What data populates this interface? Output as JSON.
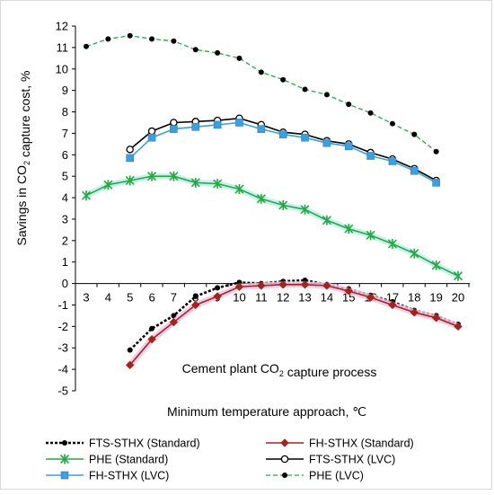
{
  "chart_data": {
    "type": "line",
    "xlabel": "Minimum temperature  approach, ℃",
    "ylabel": "Savings in CO₂ capture cost, %",
    "xlim": [
      3,
      20
    ],
    "ylim": [
      -5,
      12
    ],
    "y_ticks": [
      -5,
      -4,
      -3,
      -2,
      -1,
      0,
      1,
      2,
      3,
      4,
      5,
      6,
      7,
      8,
      9,
      10,
      11,
      12
    ],
    "x_ticks": [
      3,
      4,
      5,
      6,
      7,
      8,
      9,
      10,
      11,
      12,
      13,
      14,
      15,
      16,
      17,
      18,
      19,
      20
    ],
    "grid": false,
    "legend_position": "bottom",
    "annotation": "Cement plant CO₂ capture process",
    "series": [
      {
        "name": "FTS-STHX (Standard)",
        "color": "#000000",
        "x": [
          5,
          6,
          7,
          8,
          9,
          10,
          11,
          12,
          13,
          14,
          15,
          16,
          17,
          18,
          19,
          20
        ],
        "y": [
          -3.1,
          -2.1,
          -1.5,
          -0.6,
          -0.2,
          0.05,
          0.0,
          0.1,
          0.15,
          -0.05,
          -0.25,
          -0.55,
          -0.85,
          -1.25,
          -1.5,
          -1.9
        ]
      },
      {
        "name": "FH-STHX (Standard)",
        "color": "#a3241f",
        "x": [
          5,
          6,
          7,
          8,
          9,
          10,
          11,
          12,
          13,
          14,
          15,
          16,
          17,
          18,
          19,
          20
        ],
        "y": [
          -3.8,
          -2.6,
          -1.8,
          -1.0,
          -0.6,
          -0.15,
          -0.1,
          -0.05,
          -0.05,
          -0.1,
          -0.35,
          -0.65,
          -1.0,
          -1.35,
          -1.6,
          -2.0
        ]
      },
      {
        "name": "PHE (Standard)",
        "color": "#27a844",
        "x": [
          3,
          4,
          5,
          6,
          7,
          8,
          9,
          10,
          11,
          12,
          13,
          14,
          15,
          16,
          17,
          18,
          19,
          20
        ],
        "y": [
          4.1,
          4.6,
          4.8,
          5.0,
          5.0,
          4.7,
          4.65,
          4.4,
          3.95,
          3.65,
          3.45,
          2.95,
          2.55,
          2.25,
          1.85,
          1.4,
          0.85,
          0.35
        ]
      },
      {
        "name": "FTS-STHX (LVC)",
        "color": "#000000",
        "x": [
          5,
          6,
          7,
          8,
          9,
          10,
          11,
          12,
          13,
          14,
          15,
          16,
          17,
          18,
          19
        ],
        "y": [
          6.25,
          7.1,
          7.5,
          7.55,
          7.6,
          7.7,
          7.4,
          7.05,
          6.95,
          6.65,
          6.5,
          6.1,
          5.8,
          5.35,
          4.8
        ]
      },
      {
        "name": "FH-STHX (LVC)",
        "color": "#3d9ee0",
        "x": [
          5,
          6,
          7,
          8,
          9,
          10,
          11,
          12,
          13,
          14,
          15,
          16,
          17,
          18,
          19
        ],
        "y": [
          5.85,
          6.8,
          7.2,
          7.3,
          7.4,
          7.5,
          7.2,
          6.95,
          6.8,
          6.55,
          6.4,
          5.95,
          5.7,
          5.25,
          4.7
        ]
      },
      {
        "name": "PHE (LVC)",
        "color": "#27a844",
        "x": [
          3,
          4,
          5,
          6,
          7,
          8,
          9,
          10,
          11,
          12,
          13,
          14,
          15,
          16,
          17,
          18,
          19
        ],
        "y": [
          11.05,
          11.4,
          11.55,
          11.4,
          11.3,
          10.9,
          10.75,
          10.5,
          9.85,
          9.5,
          9.05,
          8.8,
          8.35,
          7.95,
          7.45,
          6.95,
          6.15
        ]
      }
    ]
  }
}
